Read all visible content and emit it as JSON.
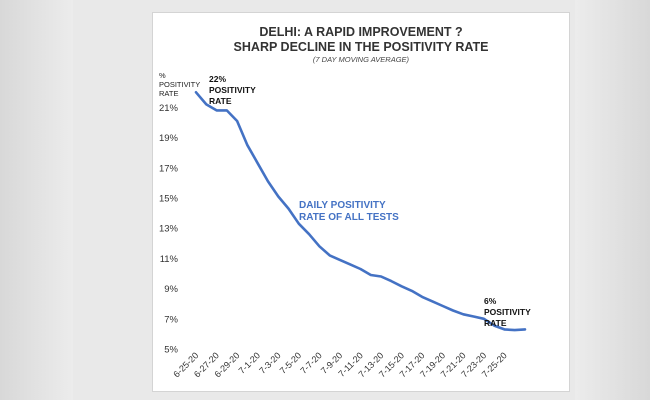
{
  "chart_data": {
    "type": "line",
    "title_lines": [
      "DELHI: A RAPID IMPROVEMENT ?",
      "SHARP DECLINE IN THE POSITIVITY RATE"
    ],
    "subtitle": "(7 DAY MOVING AVERAGE)",
    "ylabel_lines": [
      "%",
      "POSITIVITY",
      "RATE"
    ],
    "xlabel": "",
    "ylim": [
      5,
      22
    ],
    "yticks": [
      5,
      7,
      9,
      11,
      13,
      15,
      17,
      19,
      21
    ],
    "ytick_format": "percent",
    "grid": false,
    "legend": "none",
    "x_tick_labels": [
      "6-25-20",
      "6-27-20",
      "6-29-20",
      "7-1-20",
      "7-3-20",
      "7-5-20",
      "7-7-20",
      "7-9-20",
      "7-11-20",
      "7-13-20",
      "7-15-20",
      "7-17-20",
      "7-19-20",
      "7-21-20",
      "7-23-20",
      "7-25-20"
    ],
    "x": [
      "6-25-20",
      "6-26-20",
      "6-27-20",
      "6-28-20",
      "6-29-20",
      "6-30-20",
      "7-1-20",
      "7-2-20",
      "7-3-20",
      "7-4-20",
      "7-5-20",
      "7-6-20",
      "7-7-20",
      "7-8-20",
      "7-9-20",
      "7-10-20",
      "7-11-20",
      "7-12-20",
      "7-13-20",
      "7-14-20",
      "7-15-20",
      "7-16-20",
      "7-17-20",
      "7-18-20",
      "7-19-20",
      "7-20-20",
      "7-21-20",
      "7-22-20",
      "7-23-20",
      "7-24-20",
      "7-25-20",
      "7-26-20",
      "7-27-20"
    ],
    "series": [
      {
        "name": "",
        "color": "#4472c4",
        "values": [
          22.0,
          21.2,
          20.8,
          20.8,
          20.1,
          18.5,
          17.3,
          16.1,
          15.1,
          14.3,
          13.3,
          12.6,
          11.8,
          11.2,
          10.9,
          10.6,
          10.3,
          9.9,
          9.8,
          9.5,
          9.15,
          8.85,
          8.45,
          8.15,
          7.85,
          7.55,
          7.3,
          7.15,
          7.0,
          6.55,
          6.3,
          6.25,
          6.3
        ]
      }
    ],
    "annotations": [
      {
        "lines": [
          "22%",
          "POSITIVITY",
          "RATE"
        ]
      },
      {
        "lines": [
          "DAILY POSITIVITY",
          "RATE OF ALL TESTS"
        ]
      },
      {
        "lines": [
          "6%",
          "POSITIVITY",
          "RATE"
        ]
      }
    ]
  }
}
